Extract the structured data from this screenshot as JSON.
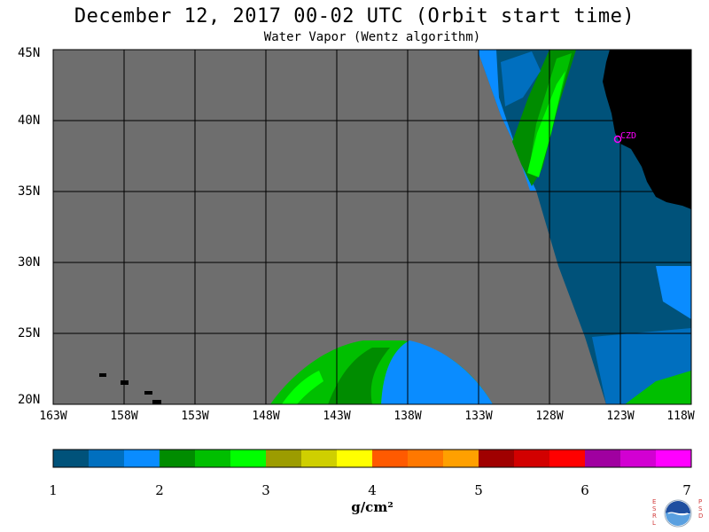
{
  "title": "December 12, 2017  00-02 UTC  (Orbit start time)",
  "subtitle": "Water Vapor (Wentz algorithm)",
  "map": {
    "lat_labels": [
      "45N",
      "40N",
      "35N",
      "30N",
      "25N",
      "20N"
    ],
    "lon_labels": [
      "163W",
      "158W",
      "153W",
      "148W",
      "143W",
      "138W",
      "133W",
      "128W",
      "123W",
      "118W"
    ],
    "lat_range": [
      20,
      45
    ],
    "lon_range": [
      -163,
      -118
    ],
    "grid": true,
    "station_label": "CZD",
    "colors": {
      "no_data": "#6e6e6e",
      "land": "#000000",
      "grid": "#000000",
      "station": "#ff00ff"
    }
  },
  "colorbar": {
    "ticks": [
      "1",
      "2",
      "3",
      "4",
      "5",
      "6",
      "7"
    ],
    "unit": "g/cm²",
    "colors": [
      "#00527a",
      "#006fbf",
      "#0a8cff",
      "#008c00",
      "#00bf00",
      "#00ff00",
      "#9c9c00",
      "#cfcf00",
      "#ffff00",
      "#ff5a00",
      "#ff7800",
      "#ffa000",
      "#a00000",
      "#d20000",
      "#ff0000",
      "#a000a0",
      "#d200d2",
      "#ff00ff"
    ]
  },
  "logo": {
    "left_letters": "ESRL",
    "right_letters": "PSD",
    "name": "NOAA"
  }
}
